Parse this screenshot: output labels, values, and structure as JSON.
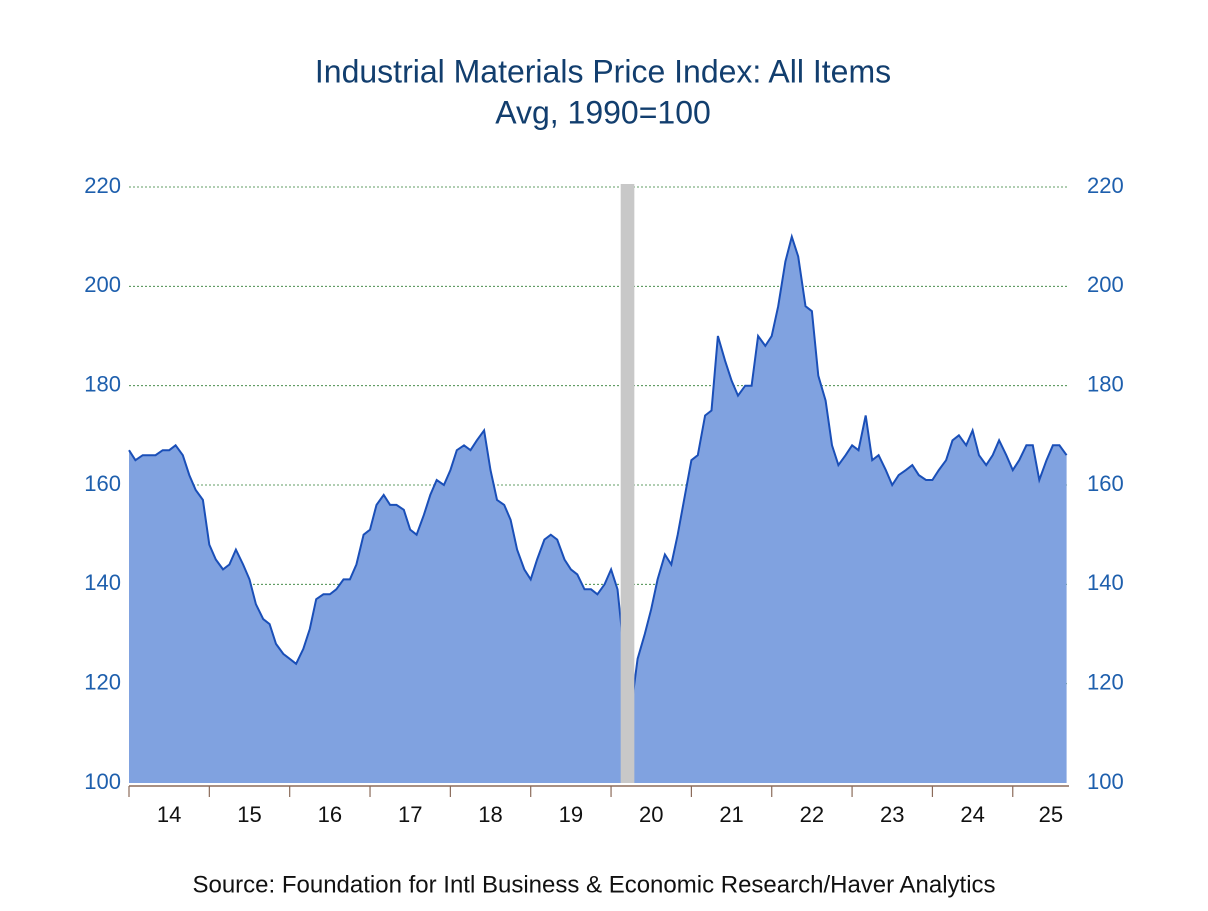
{
  "chart_data": {
    "type": "area",
    "title": "Industrial Materials Price Index: All Items",
    "subtitle": "Avg, 1990=100",
    "source": "Source:  Foundation for Intl Business & Economic Research/Haver Analytics",
    "x": [
      2014.0,
      2014.08,
      2014.17,
      2014.25,
      2014.33,
      2014.42,
      2014.5,
      2014.58,
      2014.67,
      2014.75,
      2014.83,
      2014.92,
      2015.0,
      2015.08,
      2015.17,
      2015.25,
      2015.33,
      2015.42,
      2015.5,
      2015.58,
      2015.67,
      2015.75,
      2015.83,
      2015.92,
      2016.0,
      2016.08,
      2016.17,
      2016.25,
      2016.33,
      2016.42,
      2016.5,
      2016.58,
      2016.67,
      2016.75,
      2016.83,
      2016.92,
      2017.0,
      2017.08,
      2017.17,
      2017.25,
      2017.33,
      2017.42,
      2017.5,
      2017.58,
      2017.67,
      2017.75,
      2017.83,
      2017.92,
      2018.0,
      2018.08,
      2018.17,
      2018.25,
      2018.33,
      2018.42,
      2018.5,
      2018.58,
      2018.67,
      2018.75,
      2018.83,
      2018.92,
      2019.0,
      2019.08,
      2019.17,
      2019.25,
      2019.33,
      2019.42,
      2019.5,
      2019.58,
      2019.67,
      2019.75,
      2019.83,
      2019.92,
      2020.0,
      2020.08,
      2020.17,
      2020.25,
      2020.33,
      2020.42,
      2020.5,
      2020.58,
      2020.67,
      2020.75,
      2020.83,
      2020.92,
      2021.0,
      2021.08,
      2021.17,
      2021.25,
      2021.33,
      2021.42,
      2021.5,
      2021.58,
      2021.67,
      2021.75,
      2021.83,
      2021.92,
      2022.0,
      2022.08,
      2022.17,
      2022.25,
      2022.33,
      2022.42,
      2022.5,
      2022.58,
      2022.67,
      2022.75,
      2022.83,
      2022.92,
      2023.0,
      2023.08,
      2023.17,
      2023.25,
      2023.33,
      2023.42,
      2023.5,
      2023.58,
      2023.67,
      2023.75,
      2023.83,
      2023.92,
      2024.0,
      2024.08,
      2024.17,
      2024.25,
      2024.33,
      2024.42,
      2024.5,
      2024.58,
      2024.67,
      2024.75,
      2024.83,
      2024.92,
      2025.0,
      2025.08,
      2025.17,
      2025.25,
      2025.33,
      2025.42,
      2025.5,
      2025.58,
      2025.67
    ],
    "series": [
      {
        "name": "Industrial Materials Price Index: All Items",
        "color": "#1a4fb8",
        "fill": "#80a2e0",
        "values": [
          167,
          165,
          166,
          166,
          166,
          167,
          167,
          168,
          166,
          162,
          159,
          157,
          148,
          145,
          143,
          144,
          147,
          144,
          141,
          136,
          133,
          132,
          128,
          126,
          125,
          124,
          127,
          131,
          137,
          138,
          138,
          139,
          141,
          141,
          144,
          150,
          151,
          156,
          158,
          156,
          156,
          155,
          151,
          150,
          154,
          158,
          161,
          160,
          163,
          167,
          168,
          167,
          169,
          171,
          163,
          157,
          156,
          153,
          147,
          143,
          141,
          145,
          149,
          150,
          149,
          145,
          143,
          142,
          139,
          139,
          138,
          140,
          143,
          139,
          125,
          115,
          125,
          130,
          135,
          141,
          146,
          144,
          150,
          158,
          165,
          166,
          174,
          175,
          190,
          185,
          181,
          178,
          180,
          180,
          190,
          188,
          190,
          196,
          205,
          210,
          206,
          196,
          195,
          182,
          177,
          168,
          164,
          166,
          168,
          167,
          174,
          165,
          166,
          163,
          160,
          162,
          163,
          164,
          162,
          161,
          161,
          163,
          165,
          169,
          170,
          168,
          171,
          166,
          164,
          166,
          169,
          166,
          163,
          165,
          168,
          168,
          161,
          165,
          168,
          168,
          166
        ]
      }
    ],
    "shading": [
      [
        2020.12,
        2020.29
      ]
    ],
    "xlim": [
      2014,
      2025.7
    ],
    "xticks": [
      {
        "value": 2014,
        "label": "14"
      },
      {
        "value": 2015,
        "label": "15"
      },
      {
        "value": 2016,
        "label": "16"
      },
      {
        "value": 2017,
        "label": "17"
      },
      {
        "value": 2018,
        "label": "18"
      },
      {
        "value": 2019,
        "label": "19"
      },
      {
        "value": 2020,
        "label": "20"
      },
      {
        "value": 2021,
        "label": "21"
      },
      {
        "value": 2022,
        "label": "22"
      },
      {
        "value": 2023,
        "label": "23"
      },
      {
        "value": 2024,
        "label": "24"
      },
      {
        "value": 2025,
        "label": "25"
      }
    ],
    "ylim": [
      100,
      220
    ],
    "yticks": [
      100,
      120,
      140,
      160,
      180,
      200,
      220
    ],
    "y2lim": [
      100,
      220
    ],
    "y2ticks": [
      100,
      120,
      140,
      160,
      180,
      200,
      220
    ],
    "grid": true
  }
}
